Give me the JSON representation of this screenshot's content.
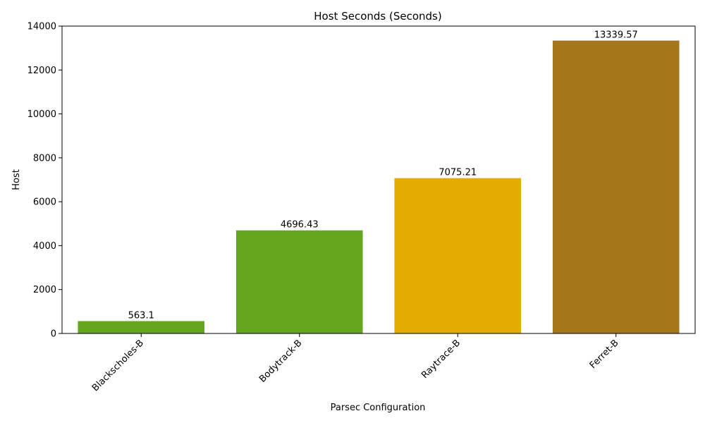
{
  "chart_data": {
    "type": "bar",
    "title": "Host Seconds (Seconds)",
    "xlabel": "Parsec Configuration",
    "ylabel": "Host",
    "categories": [
      "Blackscholes-B",
      "Bodytrack-B",
      "Raytrace-B",
      "Ferret-B"
    ],
    "values": [
      563.1,
      4696.43,
      7075.21,
      13339.57
    ],
    "value_labels": [
      "563.1",
      "4696.43",
      "7075.21",
      "13339.57"
    ],
    "colors": [
      "#66a61e",
      "#66a61e",
      "#e6ab02",
      "#a6761d"
    ],
    "ylim": [
      0,
      14000
    ],
    "yticks": [
      0,
      2000,
      4000,
      6000,
      8000,
      10000,
      12000,
      14000
    ],
    "ytick_labels": [
      "0",
      "2000",
      "4000",
      "6000",
      "8000",
      "10000",
      "12000",
      "14000"
    ],
    "grid": false,
    "legend": "none"
  }
}
